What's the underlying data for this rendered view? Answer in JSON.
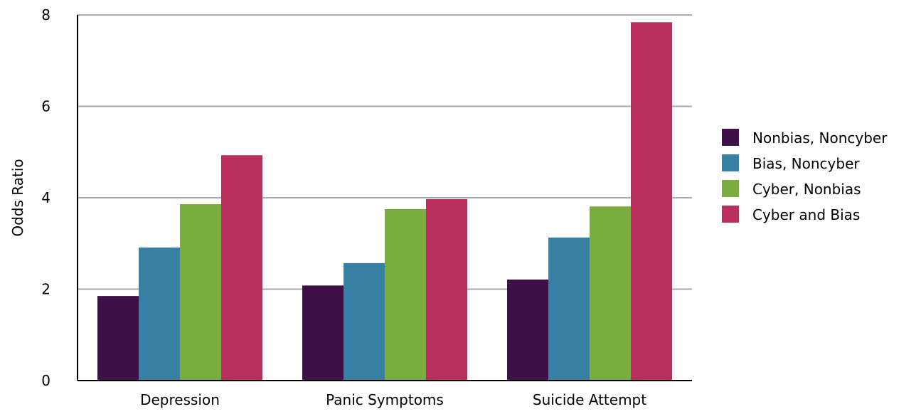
{
  "chart_data": {
    "type": "bar",
    "title": "",
    "xlabel": "",
    "ylabel": "Odds Ratio",
    "ylim": [
      0,
      8
    ],
    "yticks": [
      "0",
      "2",
      "4",
      "6",
      "8"
    ],
    "categories": [
      "Depression",
      "Panic Symptoms",
      "Suicide Attempt"
    ],
    "grid": true,
    "legend_position": "right",
    "series": [
      {
        "name": "Nonbias, Noncyber",
        "color": "#3e0f48",
        "values": [
          1.85,
          2.08,
          2.21
        ]
      },
      {
        "name": "Bias, Noncyber",
        "color": "#3680a4",
        "values": [
          2.91,
          2.57,
          3.13
        ]
      },
      {
        "name": "Cyber, Nonbias",
        "color": "#7aac40",
        "values": [
          3.86,
          3.75,
          3.81
        ]
      },
      {
        "name": "Cyber and Bias",
        "color": "#ba2e5e",
        "values": [
          4.93,
          3.97,
          7.84
        ]
      }
    ]
  }
}
